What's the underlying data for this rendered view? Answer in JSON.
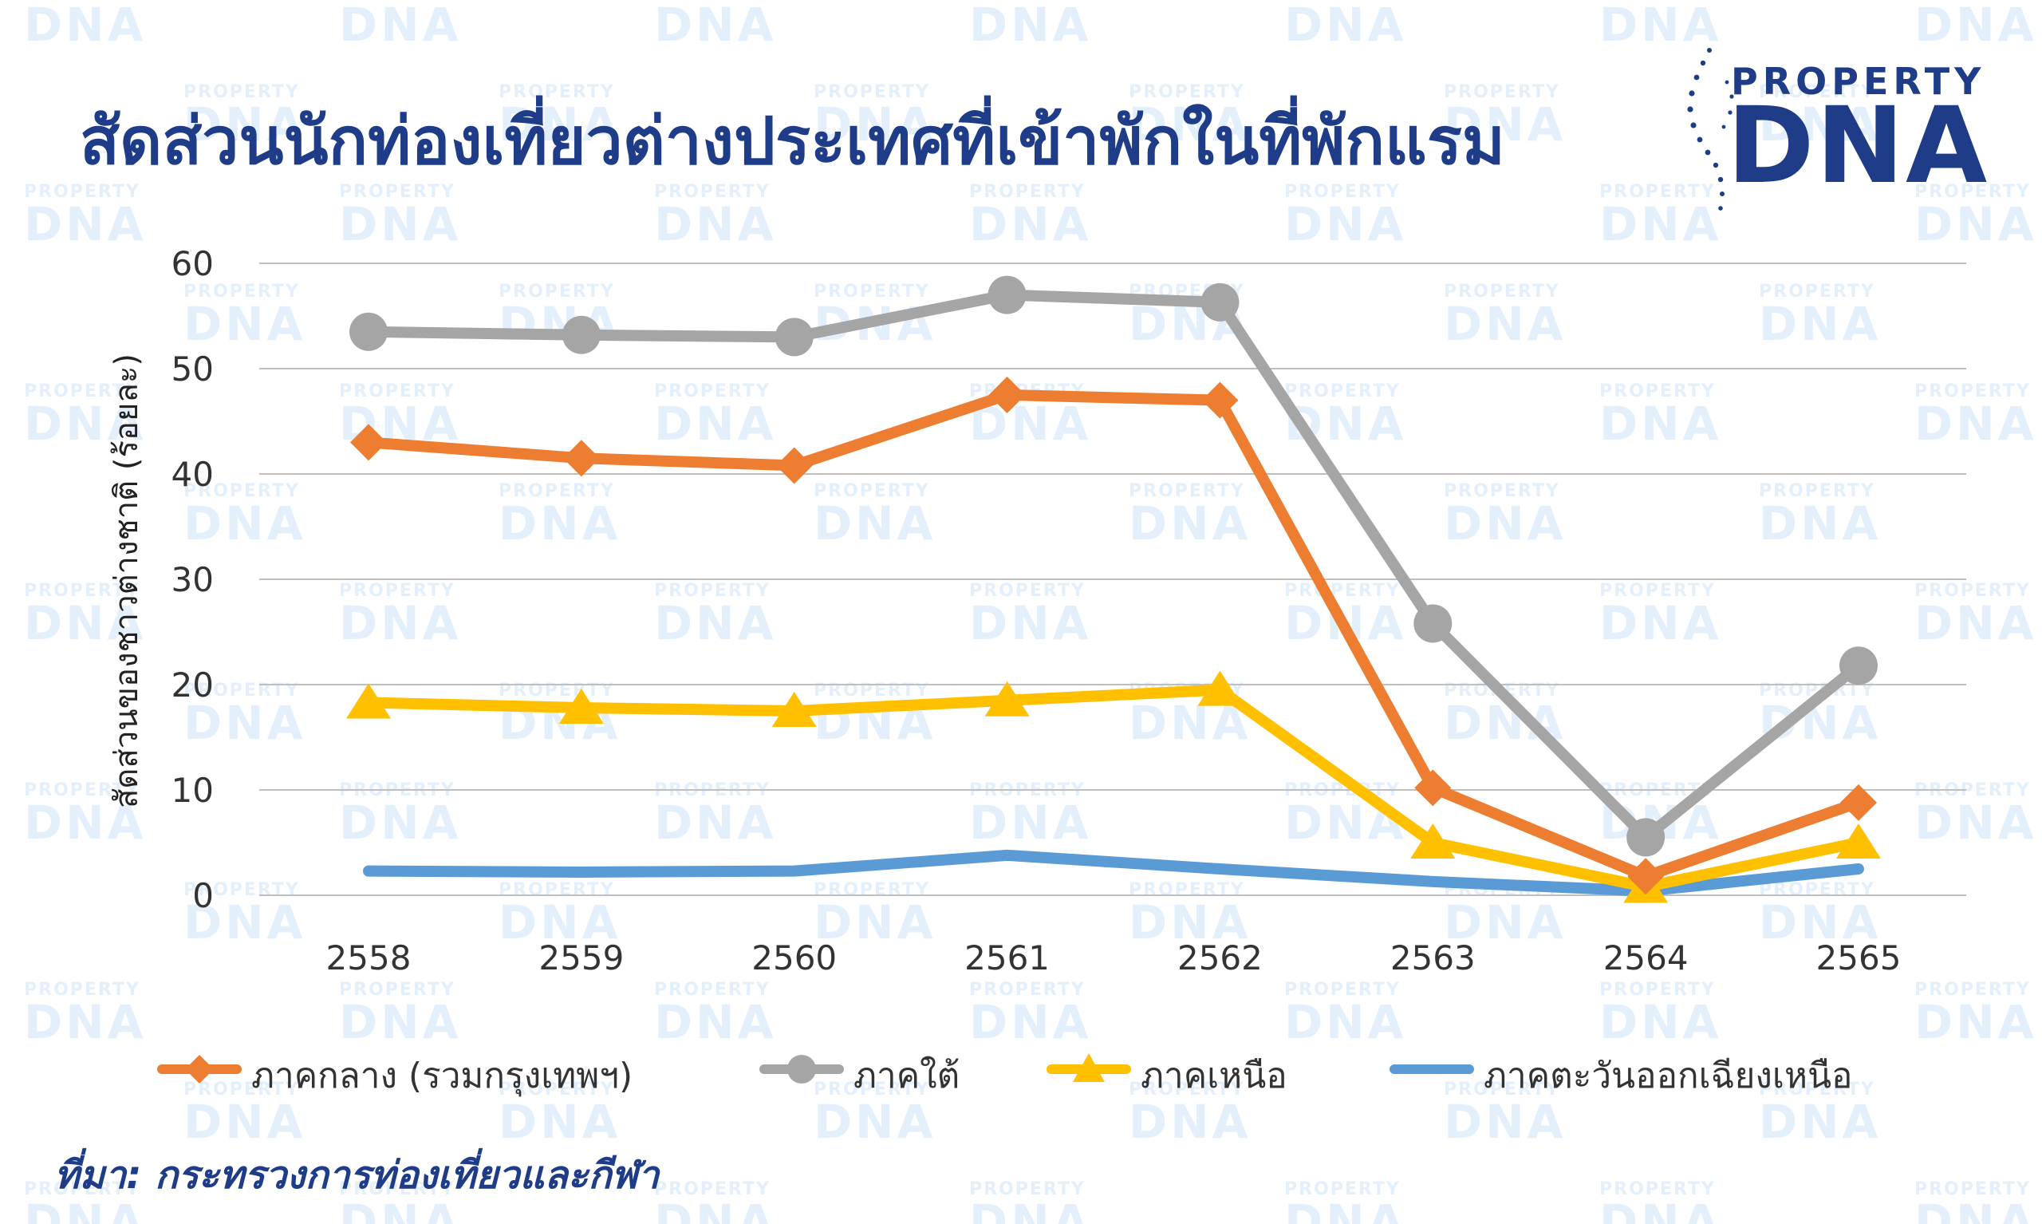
{
  "header": {
    "title": "สัดส่วนนักท่องเที่ยวต่างประเทศที่เข้าพักในที่พักแรม"
  },
  "logo": {
    "top_text": "PROPERTY",
    "bottom_text": "DNA",
    "color": "#1f3c88"
  },
  "watermark": {
    "small_text": "PROPERTY",
    "big_text": "DNA",
    "color": "#e3f0fb"
  },
  "footer": {
    "source": "ที่มา: กระทรวงการท่องเที่ยวและกีฬา"
  },
  "colors": {
    "title": "#1f3c88",
    "gridline": "#bfbfbf",
    "axis_text": "#333333"
  },
  "chart_data": {
    "type": "line",
    "title": "สัดส่วนนักท่องเที่ยวต่างประเทศที่เข้าพักในที่พักแรม",
    "xlabel": "",
    "ylabel": "สัดส่วนของชาวต่างชาติ (ร้อยละ)",
    "categories": [
      "2558",
      "2559",
      "2560",
      "2561",
      "2562",
      "2563",
      "2564",
      "2565"
    ],
    "ylim": [
      0,
      60
    ],
    "yticks": [
      "0",
      "10",
      "20",
      "30",
      "40",
      "50",
      "60"
    ],
    "grid": true,
    "legend_position": "bottom",
    "series": [
      {
        "name": "ภาคกลาง (รวมกรุงเทพฯ)",
        "color": "#ed7d31",
        "marker": "diamond",
        "values": [
          43.0,
          41.5,
          40.8,
          47.5,
          47.0,
          10.2,
          1.8,
          8.8
        ]
      },
      {
        "name": "ภาคใต้",
        "color": "#a5a5a5",
        "marker": "circle",
        "values": [
          53.5,
          53.2,
          53.0,
          57.0,
          56.3,
          25.8,
          5.5,
          21.8
        ]
      },
      {
        "name": "ภาคเหนือ",
        "color": "#ffc000",
        "marker": "triangle",
        "values": [
          18.3,
          17.8,
          17.5,
          18.5,
          19.5,
          5.0,
          0.8,
          5.0
        ]
      },
      {
        "name": "ภาคตะวันออกเฉียงเหนือ",
        "color": "#5b9bd5",
        "marker": "none",
        "values": [
          2.3,
          2.2,
          2.3,
          3.8,
          2.5,
          1.3,
          0.4,
          2.5
        ]
      }
    ]
  }
}
